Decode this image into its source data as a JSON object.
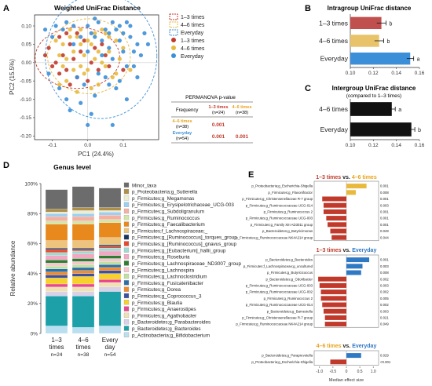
{
  "panel_labels": {
    "A": "A",
    "B": "B",
    "C": "C",
    "D": "D",
    "E": "E"
  },
  "colors": {
    "g1": "#c0392b",
    "g2": "#e8b93d",
    "g3": "#3b8fd8",
    "neg": "#c0392b",
    "pos_a": "#e8b93d",
    "pos_b": "#2f78c4"
  },
  "pcoa": {
    "title": "Weighted UniFrac Distance",
    "xlabel": "PC1 (24.4%)",
    "ylabel": "PC2 (15.5%)",
    "xticks": [
      "-0.1",
      "0.0",
      "0.1"
    ],
    "yticks": [
      "0.10",
      "0.05",
      "0.00",
      "-0.05",
      "-0.10",
      "-0.15",
      "-0.20"
    ],
    "legend": [
      "1–3 times",
      "4–6 times",
      "Everyday",
      "1–3 times",
      "4–6 times",
      "Everyday"
    ],
    "permanova": {
      "title": "PERMANOVA p-value",
      "header_left": "Frequency",
      "col1": "1–3 times",
      "col1_n": "(n=24)",
      "col2": "4–6 times",
      "col2_n": "(n=38)",
      "row1": "4–6 times",
      "row1_n": "(n=38)",
      "row2": "Everyday",
      "row2_n": "(n=54)",
      "v11": "0.001",
      "v21": "0.001",
      "v22": "0.001"
    }
  },
  "chart_data": [
    {
      "type": "scatter",
      "title": "Weighted UniFrac Distance",
      "xlabel": "PC1 (24.4%)",
      "ylabel": "PC2 (15.5%)",
      "xlim": [
        -0.15,
        0.2
      ],
      "ylim": [
        -0.21,
        0.13
      ],
      "series": [
        {
          "name": "1–3 times",
          "points": [
            [
              -0.11,
              0.04
            ],
            [
              -0.09,
              0.0
            ],
            [
              -0.08,
              0.07
            ],
            [
              -0.07,
              0.02
            ],
            [
              -0.06,
              -0.02
            ],
            [
              -0.05,
              0.05
            ],
            [
              -0.04,
              0.01
            ],
            [
              -0.03,
              -0.04
            ],
            [
              -0.02,
              0.03
            ],
            [
              0.01,
              0.0
            ],
            [
              -0.12,
              0.02
            ],
            [
              -0.03,
              0.08
            ],
            [
              0.0,
              -0.05
            ],
            [
              0.02,
              0.04
            ],
            [
              0.05,
              0.02
            ],
            [
              -0.08,
              -0.03
            ],
            [
              -0.06,
              0.08
            ],
            [
              -0.1,
              -0.01
            ],
            [
              0.03,
              -0.02
            ],
            [
              -0.01,
              0.06
            ],
            [
              0.04,
              0.05
            ],
            [
              -0.05,
              -0.06
            ],
            [
              0.06,
              -0.01
            ],
            [
              0.1,
              -0.02
            ]
          ]
        },
        {
          "name": "4–6 times",
          "points": [
            [
              -0.07,
              0.05
            ],
            [
              -0.04,
              0.03
            ],
            [
              -0.02,
              -0.01
            ],
            [
              -0.06,
              -0.05
            ],
            [
              -0.08,
              0.02
            ],
            [
              0.0,
              0.06
            ],
            [
              0.02,
              0.08
            ],
            [
              0.04,
              0.0
            ],
            [
              -0.03,
              -0.08
            ],
            [
              0.06,
              0.03
            ],
            [
              -0.01,
              0.02
            ],
            [
              0.08,
              0.06
            ],
            [
              -0.05,
              0.09
            ],
            [
              0.03,
              -0.06
            ],
            [
              0.07,
              -0.04
            ],
            [
              -0.09,
              0.06
            ],
            [
              0.05,
              0.08
            ],
            [
              0.01,
              0.05
            ],
            [
              -0.02,
              0.09
            ],
            [
              0.09,
              0.01
            ],
            [
              -0.01,
              -0.03
            ],
            [
              -0.04,
              -0.02
            ],
            [
              0.02,
              0.01
            ],
            [
              0.0,
              -0.02
            ],
            [
              -0.06,
              0.01
            ],
            [
              0.05,
              -0.01
            ],
            [
              0.03,
              0.03
            ],
            [
              -0.02,
              0.05
            ],
            [
              0.08,
              -0.03
            ],
            [
              -0.07,
              -0.01
            ],
            [
              0.06,
              0.07
            ],
            [
              0.1,
              0.04
            ],
            [
              -0.03,
              0.07
            ],
            [
              0.01,
              -0.07
            ],
            [
              -0.05,
              0.07
            ],
            [
              0.04,
              0.09
            ],
            [
              -0.08,
              -0.06
            ],
            [
              0.12,
              -0.02
            ]
          ]
        },
        {
          "name": "Everyday",
          "points": [
            [
              0.0,
              0.1
            ],
            [
              0.03,
              0.11
            ],
            [
              -0.06,
              0.11
            ],
            [
              0.05,
              0.09
            ],
            [
              0.08,
              0.09
            ],
            [
              0.12,
              0.07
            ],
            [
              0.1,
              0.03
            ],
            [
              0.14,
              0.05
            ],
            [
              0.07,
              0.01
            ],
            [
              0.11,
              -0.01
            ],
            [
              0.13,
              -0.01
            ],
            [
              0.06,
              -0.06
            ],
            [
              0.02,
              -0.09
            ],
            [
              -0.02,
              -0.11
            ],
            [
              -0.05,
              -0.13
            ],
            [
              0.07,
              -0.17
            ],
            [
              0.11,
              -0.1
            ],
            [
              -0.1,
              0.07
            ],
            [
              -0.07,
              0.09
            ],
            [
              -0.02,
              0.07
            ],
            [
              0.0,
              0.03
            ],
            [
              0.04,
              0.06
            ],
            [
              0.09,
              0.06
            ],
            [
              0.01,
              0.08
            ],
            [
              -0.04,
              0.1
            ],
            [
              0.06,
              0.04
            ],
            [
              0.15,
              0.02
            ],
            [
              0.12,
              0.1
            ],
            [
              0.08,
              -0.07
            ],
            [
              0.03,
              -0.03
            ],
            [
              -0.01,
              -0.06
            ],
            [
              -0.08,
              -0.07
            ],
            [
              -0.11,
              -0.03
            ],
            [
              0.16,
              0.08
            ],
            [
              0.02,
              0.12
            ],
            [
              -0.03,
              -0.04
            ],
            [
              0.1,
              0.08
            ],
            [
              0.05,
              -0.04
            ],
            [
              0.09,
              -0.05
            ],
            [
              -0.06,
              -0.1
            ],
            [
              0.14,
              -0.04
            ],
            [
              0.07,
              0.11
            ],
            [
              -0.09,
              0.1
            ],
            [
              0.01,
              -0.14
            ],
            [
              0.04,
              0.02
            ],
            [
              0.13,
              0.03
            ],
            [
              -0.04,
              0.05
            ],
            [
              0.11,
              0.11
            ],
            [
              0.06,
              0.08
            ],
            [
              -0.12,
              0.09
            ],
            [
              0.17,
              0.05
            ],
            [
              0.0,
              -0.17
            ],
            [
              0.02,
              0.07
            ],
            [
              0.09,
              0.1
            ]
          ]
        }
      ]
    },
    {
      "type": "bar",
      "title": "Intragroup UniFrac distance",
      "orientation": "horizontal",
      "categories": [
        "1–3 times",
        "4–6 times",
        "Everyday"
      ],
      "values": [
        0.127,
        0.125,
        0.152
      ],
      "errors": [
        0.004,
        0.004,
        0.003
      ],
      "letters": [
        "b",
        "b",
        "a"
      ],
      "xlim": [
        0.1,
        0.16
      ],
      "xticks": [
        "0.10",
        "0.12",
        "0.14",
        "0.16"
      ]
    },
    {
      "type": "bar",
      "title": "Intergroup UniFrac distance",
      "subtitle": "(compared to 1–3 times)",
      "orientation": "horizontal",
      "categories": [
        "4–6 times",
        "Everyday"
      ],
      "values": [
        0.136,
        0.153
      ],
      "errors": [
        0.003,
        0.003
      ],
      "letters": [
        "a",
        "b"
      ],
      "xlim": [
        0.1,
        0.16
      ],
      "xticks": [
        "0.10",
        "0.12",
        "0.14",
        "0.16"
      ]
    },
    {
      "type": "bar",
      "stacked": true,
      "title": "Genus level",
      "ylabel": "Relative abundance",
      "yticks": [
        "0%",
        "20%",
        "40%",
        "60%",
        "80%",
        "100%"
      ],
      "categories": [
        "1–3 times",
        "4–6 times",
        "Every day"
      ],
      "category_lines": [
        [
          "1–3",
          "times",
          "n=24"
        ],
        [
          "4–6",
          "times",
          "n=38"
        ],
        [
          "Every",
          "day",
          "n=54"
        ]
      ],
      "series": [
        {
          "name": "p_Actinobacteria;g_Bifidobacterium",
          "color": "#b9dff0",
          "values": [
            5,
            4,
            5
          ]
        },
        {
          "name": "p_Bacteroidetes;g_Bacteroides",
          "color": "#1ea0a8",
          "values": [
            20,
            21,
            23
          ]
        },
        {
          "name": "p_Bacteroidetes;g_Parabacteroides",
          "color": "#d9d1e8",
          "values": [
            3,
            3,
            3
          ]
        },
        {
          "name": "p_Firmicutes;g_Agathobacter",
          "color": "#efe1b2",
          "values": [
            3,
            3,
            3
          ]
        },
        {
          "name": "p_Firmicutes;g_Anaerostipes",
          "color": "#e9468f",
          "values": [
            2,
            2,
            2
          ]
        },
        {
          "name": "p_Firmicutes;g_Blautia",
          "color": "#f6d12b",
          "values": [
            4,
            5,
            4
          ]
        },
        {
          "name": "p_Firmicutes;g_Coprococcus_3",
          "color": "#3d4fa3",
          "values": [
            2,
            2,
            2
          ]
        },
        {
          "name": "p_Firmicutes;g_Dorea",
          "color": "#f28c28",
          "values": [
            2,
            2,
            2
          ]
        },
        {
          "name": "p_Firmicutes;g_Fusicatenibacter",
          "color": "#2f6fa8",
          "values": [
            2,
            2,
            2
          ]
        },
        {
          "name": "p_Firmicutes;g_Lachnoclostridium",
          "color": "#bfe0a0",
          "values": [
            2,
            2,
            2
          ]
        },
        {
          "name": "p_Firmicutes;g_Lachnospira",
          "color": "#f7c7cf",
          "values": [
            2,
            2,
            2
          ]
        },
        {
          "name": "p_Firmicutes;g_Lachnospiraceae_ND3007_group",
          "color": "#2e7d32",
          "values": [
            2,
            2,
            2
          ]
        },
        {
          "name": "p_Firmicutes;g_Roseburia",
          "color": "#f2a7c2",
          "values": [
            3,
            3,
            3
          ]
        },
        {
          "name": "p_Firmicutes;g_[Eubacterium]_hallii_group",
          "color": "#9fd9d2",
          "values": [
            2,
            2,
            2
          ]
        },
        {
          "name": "p_Firmicutes;g_[Ruminococcus]_gnavus_group",
          "color": "#e64a2e",
          "values": [
            2,
            1,
            1
          ]
        },
        {
          "name": "p_Firmicutes;g_[Ruminococcus]_torques_group",
          "color": "#17355e",
          "values": [
            1,
            1,
            1
          ]
        },
        {
          "name": "p_Firmicutes;f_Lachnospiraceae;_",
          "color": "#ecc47e",
          "values": [
            5,
            5,
            5
          ]
        },
        {
          "name": "p_Firmicutes;g_Faecalibacterium",
          "color": "#e8891e",
          "values": [
            11,
            11,
            10
          ]
        },
        {
          "name": "p_Firmicutes;g_Ruminococcus",
          "color": "#d2e6a9",
          "values": [
            2,
            2,
            2
          ]
        },
        {
          "name": "p_Firmicutes;g_Subdoligranulum",
          "color": "#f5b0a2",
          "values": [
            3,
            3,
            3
          ]
        },
        {
          "name": "p_Firmicutes;g_Erysipelotrichaceae_UCG-003",
          "color": "#9cd0f0",
          "values": [
            2,
            2,
            2
          ]
        },
        {
          "name": "p_Firmicutes;g_Megamonas",
          "color": "#eceed2",
          "values": [
            1,
            2,
            1
          ]
        },
        {
          "name": "p_Proteobacteria;g_Sutterella",
          "color": "#b08f4a",
          "values": [
            2,
            2,
            2
          ]
        },
        {
          "name": "Minor_taxa",
          "color": "#6c6c6c",
          "values": [
            13,
            14,
            13
          ]
        }
      ]
    },
    {
      "type": "bar",
      "orientation": "horizontal",
      "title": "1–3 times vs. 4–6 times",
      "xlabel": "Median effect size",
      "categories": [
        "p_Proteobacteria;g_Escherichia-Shigella",
        "p_Firmicutes;g_Flavonifractor",
        "p_Firmicutes;g_Christensenellaceae R-7 group",
        "p_Firmicutes;g_Ruminococcaceae UCG-014",
        "p_Firmicutes;g_Ruminococcus 2",
        "p_Firmicutes;g_Ruminococcaceae UCG-003",
        "p_Firmicutes;g_Family XIII AD3011 group",
        "p_Bacteroidetes;g_Butyricimonas",
        "p_Firmicutes;g_Ruminococcaceae NK4A214 group"
      ],
      "values": [
        0.75,
        0.35,
        -0.9,
        -0.85,
        -0.85,
        -0.75,
        -0.7,
        -0.6,
        -0.55
      ],
      "p_values": [
        "0.001",
        "0.008",
        "0.001",
        "0.003",
        "0.001",
        "0.001",
        "0.001",
        "0.049",
        "0.044"
      ]
    },
    {
      "type": "bar",
      "orientation": "horizontal",
      "title": "1–3 times vs. Everyday",
      "categories": [
        "p_Bacteroidetes;g_Bacteroides",
        "p_Firmicutes;f_Lachnospiraceae;g_uncultured",
        "p_Firmicutes;g_Butyricicoccus",
        "p_Bacteroidetes;g_Odoribacter",
        "p_Firmicutes;g_Ruminococcaceae UCG-003",
        "p_Firmicutes;g_Ruminococcaceae UCG-002",
        "p_Firmicutes;g_Ruminococcus 2",
        "p_Firmicutes;g_Ruminococcaceae UCG-014",
        "p_Bacteroidetes;g_Barnesiella",
        "p_Firmicutes;g_Christensenellaceae R-7 group",
        "p_Firmicutes;g_Ruminococcaceae NK4A214 group"
      ],
      "values": [
        0.85,
        0.6,
        0.55,
        -1.05,
        -1.0,
        -0.95,
        -0.95,
        -0.9,
        -0.85,
        -0.8,
        -0.8
      ],
      "p_values": [
        "0.001",
        "0.003",
        "0.008",
        "0.002",
        "0.003",
        "0.002",
        "0.005",
        "0.002",
        "0.003",
        "0.021",
        "0.049"
      ]
    },
    {
      "type": "bar",
      "orientation": "horizontal",
      "title": "4–6 times vs. Everyday",
      "categories": [
        "p_Bacteroidetes;g_Paraprevotella",
        "p_Proteobacteria;g_Escherichia-Shigella"
      ],
      "values": [
        0.55,
        -0.6
      ],
      "p_values": [
        "0.029",
        "<0.001"
      ]
    }
  ],
  "panel_e": {
    "vs": "vs.",
    "xlabel": "Median effect size",
    "xticks": [
      "-1.0",
      "-0.5",
      "0",
      "0.5",
      "1.0"
    ],
    "titles": [
      [
        "1–3 times",
        "4–6 times"
      ],
      [
        "1–3 times",
        "Everyday"
      ],
      [
        "4–6 times",
        "Everyday"
      ]
    ]
  }
}
